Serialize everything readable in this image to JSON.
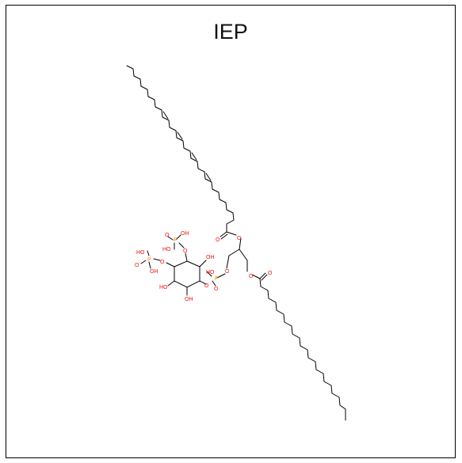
{
  "title": "IEP",
  "atom_labels": {
    "ester_o1": "O",
    "ester_o_carbonyl1": "O",
    "ester_o2": "O",
    "ester_o_carbonyl2": "O",
    "glycerol_o": "O",
    "phosphate_p_main": "P",
    "phosphate_oh_main": "HO",
    "phosphate_o_main": "O",
    "ring_oh_top": "OH",
    "ring_oh_left": "HO",
    "ring_oh_bottom": "OH",
    "p2": "P",
    "p2_oh_a": "OH",
    "p2_oh_b": "HO",
    "p2_o": "O",
    "p2_link_o": "O",
    "p3": "P",
    "p3_ho": "HO",
    "p3_oh": "OH",
    "p3_o": "O",
    "p3_link_o": "O",
    "ring_o_link": "O"
  },
  "colors": {
    "oxygen": "#ff0d0d",
    "phosphorus": "#ff8000",
    "bond": "#000000"
  }
}
